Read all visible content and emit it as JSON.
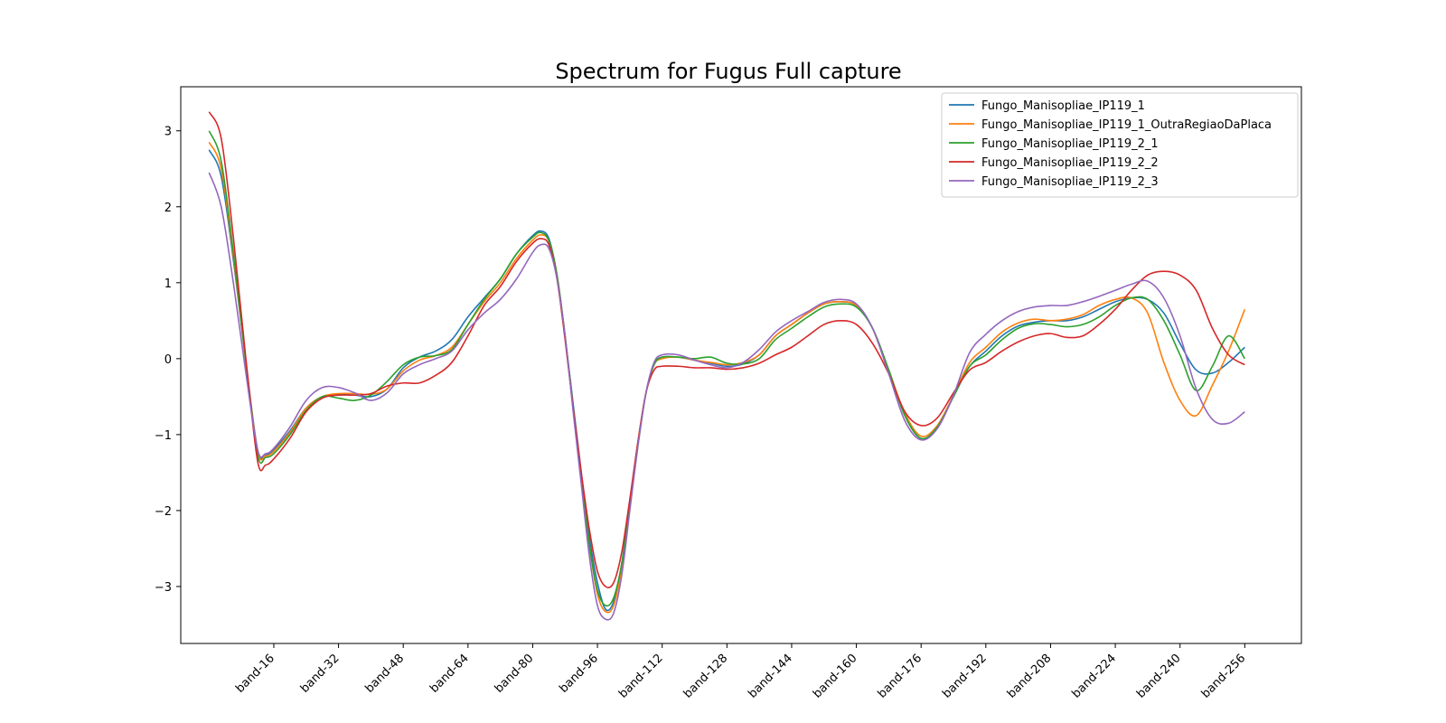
{
  "chart_data": {
    "type": "line",
    "title": "Spectrum for Fugus Full capture",
    "xlabel": "",
    "ylabel": "",
    "xlim": [
      -7,
      270
    ],
    "ylim": [
      -3.75,
      3.58
    ],
    "x_ticks": [
      16,
      32,
      48,
      64,
      80,
      96,
      112,
      128,
      144,
      160,
      176,
      192,
      208,
      224,
      240,
      256
    ],
    "x_tick_labels": [
      "band-16",
      "band-32",
      "band-48",
      "band-64",
      "band-80",
      "band-96",
      "band-112",
      "band-128",
      "band-144",
      "band-160",
      "band-176",
      "band-192",
      "band-208",
      "band-224",
      "band-240",
      "band-256"
    ],
    "y_ticks": [
      -3,
      -2,
      -1,
      0,
      1,
      2,
      3
    ],
    "y_tick_labels": [
      "−3",
      "−2",
      "−1",
      "0",
      "1",
      "2",
      "3"
    ],
    "grid": false,
    "legend_position": "top-right",
    "series": [
      {
        "name": "Fungo_Manisopliae_IP119_1",
        "color": "#1f77b4",
        "x": [
          0,
          3,
          6,
          9,
          12,
          14,
          16,
          20,
          24,
          28,
          32,
          36,
          40,
          44,
          48,
          52,
          56,
          60,
          64,
          68,
          72,
          76,
          80,
          82,
          84,
          86,
          88,
          90,
          92,
          94,
          96,
          98,
          100,
          102,
          104,
          106,
          108,
          110,
          112,
          116,
          120,
          124,
          128,
          132,
          136,
          140,
          144,
          148,
          152,
          156,
          160,
          164,
          168,
          172,
          176,
          180,
          184,
          188,
          192,
          196,
          200,
          204,
          208,
          212,
          216,
          220,
          224,
          228,
          232,
          236,
          240,
          244,
          248,
          252,
          256
        ],
        "y": [
          2.75,
          2.4,
          1.3,
          0.0,
          -1.2,
          -1.27,
          -1.2,
          -0.95,
          -0.65,
          -0.5,
          -0.47,
          -0.48,
          -0.5,
          -0.4,
          -0.12,
          0.02,
          0.1,
          0.25,
          0.55,
          0.8,
          1.05,
          1.38,
          1.62,
          1.68,
          1.58,
          1.1,
          0.3,
          -0.6,
          -1.5,
          -2.35,
          -2.95,
          -3.3,
          -3.2,
          -2.7,
          -1.9,
          -1.1,
          -0.45,
          -0.07,
          0.02,
          0.02,
          -0.02,
          -0.06,
          -0.1,
          -0.07,
          0.05,
          0.3,
          0.45,
          0.6,
          0.72,
          0.75,
          0.7,
          0.4,
          -0.15,
          -0.75,
          -1.05,
          -0.9,
          -0.5,
          -0.1,
          0.1,
          0.3,
          0.43,
          0.48,
          0.5,
          0.5,
          0.55,
          0.65,
          0.75,
          0.8,
          0.78,
          0.6,
          0.2,
          -0.15,
          -0.19,
          -0.05,
          0.15
        ]
      },
      {
        "name": "Fungo_Manisopliae_IP119_1_OutraRegiaoDaPlaca",
        "color": "#ff7f0e",
        "x": [
          0,
          3,
          6,
          9,
          12,
          14,
          16,
          20,
          24,
          28,
          32,
          36,
          40,
          44,
          48,
          52,
          56,
          60,
          64,
          68,
          72,
          76,
          80,
          82,
          84,
          86,
          88,
          90,
          92,
          94,
          96,
          98,
          100,
          102,
          104,
          106,
          108,
          110,
          112,
          116,
          120,
          124,
          128,
          132,
          136,
          140,
          144,
          148,
          152,
          156,
          160,
          164,
          168,
          172,
          176,
          180,
          184,
          188,
          192,
          196,
          200,
          204,
          208,
          212,
          216,
          220,
          224,
          228,
          232,
          236,
          240,
          244,
          248,
          252,
          256
        ],
        "y": [
          2.85,
          2.5,
          1.35,
          0.0,
          -1.22,
          -1.28,
          -1.22,
          -0.97,
          -0.65,
          -0.5,
          -0.46,
          -0.46,
          -0.47,
          -0.4,
          -0.16,
          -0.02,
          0.04,
          0.15,
          0.45,
          0.75,
          1.0,
          1.32,
          1.56,
          1.63,
          1.55,
          1.1,
          0.3,
          -0.65,
          -1.55,
          -2.45,
          -3.1,
          -3.33,
          -3.25,
          -2.75,
          -1.95,
          -1.1,
          -0.45,
          -0.08,
          0.0,
          0.02,
          -0.02,
          -0.05,
          -0.08,
          -0.05,
          0.05,
          0.3,
          0.45,
          0.6,
          0.72,
          0.75,
          0.7,
          0.4,
          -0.15,
          -0.72,
          -1.02,
          -0.88,
          -0.48,
          -0.05,
          0.15,
          0.35,
          0.47,
          0.52,
          0.5,
          0.52,
          0.58,
          0.7,
          0.78,
          0.8,
          0.6,
          -0.05,
          -0.55,
          -0.75,
          -0.35,
          0.1,
          0.65
        ]
      },
      {
        "name": "Fungo_Manisopliae_IP119_2_1",
        "color": "#2ca02c",
        "x": [
          0,
          3,
          6,
          9,
          12,
          14,
          16,
          20,
          24,
          28,
          32,
          36,
          40,
          44,
          48,
          52,
          56,
          60,
          64,
          68,
          72,
          76,
          80,
          82,
          84,
          86,
          88,
          90,
          92,
          94,
          96,
          98,
          100,
          102,
          104,
          106,
          108,
          110,
          112,
          116,
          120,
          124,
          128,
          132,
          136,
          140,
          144,
          148,
          152,
          156,
          160,
          164,
          168,
          172,
          176,
          180,
          184,
          188,
          192,
          196,
          200,
          204,
          208,
          212,
          216,
          220,
          224,
          228,
          232,
          236,
          240,
          244,
          248,
          252,
          256
        ],
        "y": [
          3.0,
          2.6,
          1.4,
          0.0,
          -1.27,
          -1.3,
          -1.25,
          -1.0,
          -0.68,
          -0.5,
          -0.52,
          -0.55,
          -0.48,
          -0.3,
          -0.08,
          0.02,
          0.04,
          0.12,
          0.45,
          0.78,
          1.05,
          1.38,
          1.6,
          1.66,
          1.55,
          1.1,
          0.3,
          -0.65,
          -1.55,
          -2.45,
          -3.05,
          -3.25,
          -3.15,
          -2.7,
          -1.95,
          -1.15,
          -0.45,
          -0.08,
          0.02,
          0.02,
          0.0,
          0.02,
          -0.06,
          -0.07,
          0.0,
          0.25,
          0.4,
          0.55,
          0.68,
          0.72,
          0.68,
          0.4,
          -0.15,
          -0.75,
          -1.05,
          -0.9,
          -0.5,
          -0.1,
          0.05,
          0.25,
          0.4,
          0.46,
          0.45,
          0.42,
          0.45,
          0.55,
          0.7,
          0.8,
          0.78,
          0.5,
          0.05,
          -0.42,
          -0.1,
          0.3,
          0.0
        ]
      },
      {
        "name": "Fungo_Manisopliae_IP119_2_2",
        "color": "#d62728",
        "x": [
          0,
          3,
          6,
          9,
          12,
          14,
          16,
          20,
          24,
          28,
          32,
          36,
          40,
          44,
          48,
          52,
          56,
          60,
          64,
          68,
          72,
          76,
          80,
          82,
          84,
          86,
          88,
          90,
          92,
          94,
          96,
          98,
          100,
          102,
          104,
          106,
          108,
          110,
          112,
          116,
          120,
          124,
          128,
          132,
          136,
          140,
          144,
          148,
          152,
          156,
          160,
          164,
          168,
          172,
          176,
          180,
          184,
          188,
          192,
          196,
          200,
          204,
          208,
          212,
          216,
          220,
          224,
          228,
          232,
          236,
          240,
          244,
          248,
          252,
          256
        ],
        "y": [
          3.25,
          2.9,
          1.6,
          0.05,
          -1.35,
          -1.4,
          -1.32,
          -1.05,
          -0.7,
          -0.52,
          -0.48,
          -0.48,
          -0.46,
          -0.36,
          -0.32,
          -0.32,
          -0.22,
          -0.05,
          0.3,
          0.7,
          0.95,
          1.28,
          1.52,
          1.58,
          1.5,
          1.05,
          0.25,
          -0.65,
          -1.5,
          -2.25,
          -2.8,
          -3.0,
          -2.95,
          -2.55,
          -1.85,
          -1.1,
          -0.45,
          -0.15,
          -0.1,
          -0.1,
          -0.12,
          -0.12,
          -0.14,
          -0.12,
          -0.06,
          0.05,
          0.15,
          0.3,
          0.45,
          0.5,
          0.45,
          0.2,
          -0.2,
          -0.7,
          -0.88,
          -0.78,
          -0.45,
          -0.15,
          -0.05,
          0.1,
          0.22,
          0.3,
          0.33,
          0.28,
          0.3,
          0.45,
          0.65,
          0.9,
          1.1,
          1.15,
          1.1,
          0.9,
          0.4,
          0.05,
          -0.08
        ]
      },
      {
        "name": "Fungo_Manisopliae_IP119_2_3",
        "color": "#9467bd",
        "x": [
          0,
          3,
          6,
          9,
          12,
          14,
          16,
          20,
          24,
          28,
          32,
          36,
          40,
          44,
          48,
          52,
          56,
          60,
          64,
          68,
          72,
          76,
          80,
          82,
          84,
          86,
          88,
          90,
          92,
          94,
          96,
          98,
          100,
          102,
          104,
          106,
          108,
          110,
          112,
          116,
          120,
          124,
          128,
          132,
          136,
          140,
          144,
          148,
          152,
          156,
          160,
          164,
          168,
          172,
          176,
          180,
          184,
          188,
          192,
          196,
          200,
          204,
          208,
          212,
          216,
          220,
          224,
          228,
          232,
          236,
          240,
          244,
          248,
          252,
          256
        ],
        "y": [
          2.45,
          2.0,
          1.0,
          -0.15,
          -1.2,
          -1.25,
          -1.18,
          -0.9,
          -0.55,
          -0.38,
          -0.38,
          -0.45,
          -0.55,
          -0.45,
          -0.2,
          -0.08,
          0.0,
          0.1,
          0.38,
          0.6,
          0.78,
          1.05,
          1.4,
          1.5,
          1.45,
          1.05,
          0.3,
          -0.7,
          -1.65,
          -2.6,
          -3.25,
          -3.43,
          -3.35,
          -2.85,
          -2.0,
          -1.15,
          -0.45,
          -0.05,
          0.05,
          0.05,
          -0.02,
          -0.08,
          -0.12,
          -0.05,
          0.12,
          0.35,
          0.5,
          0.62,
          0.74,
          0.78,
          0.72,
          0.4,
          -0.2,
          -0.82,
          -1.07,
          -0.92,
          -0.48,
          0.08,
          0.32,
          0.5,
          0.62,
          0.68,
          0.7,
          0.7,
          0.75,
          0.82,
          0.9,
          0.98,
          1.02,
          0.8,
          0.3,
          -0.4,
          -0.8,
          -0.85,
          -0.7
        ]
      }
    ]
  }
}
